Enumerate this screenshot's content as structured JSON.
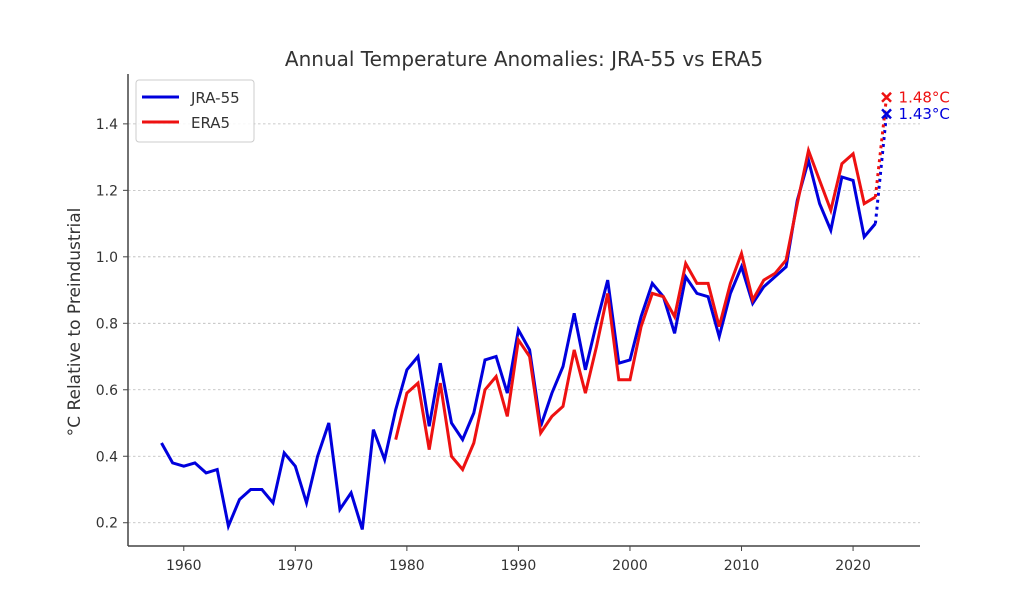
{
  "chart_data": {
    "type": "line",
    "title": "Annual Temperature Anomalies: JRA-55 vs ERA5",
    "xlabel": "",
    "ylabel": "°C Relative to Preindustrial",
    "xlim": [
      1955,
      2026
    ],
    "ylim": [
      0.13,
      1.55
    ],
    "x_ticks": [
      1960,
      1970,
      1980,
      1990,
      2000,
      2010,
      2020
    ],
    "x_tick_labels": [
      "1960",
      "1970",
      "1980",
      "1990",
      "2000",
      "2010",
      "2020"
    ],
    "y_ticks": [
      0.2,
      0.4,
      0.6,
      0.8,
      1.0,
      1.2,
      1.4
    ],
    "y_tick_labels": [
      "0.2",
      "0.4",
      "0.6",
      "0.8",
      "1.0",
      "1.2",
      "1.4"
    ],
    "grid": "horizontal-dotted",
    "legend_position": "top-left",
    "series": [
      {
        "name": "JRA-55",
        "color": "#0000dd",
        "x": [
          1958,
          1959,
          1960,
          1961,
          1962,
          1963,
          1964,
          1965,
          1966,
          1967,
          1968,
          1969,
          1970,
          1971,
          1972,
          1973,
          1974,
          1975,
          1976,
          1977,
          1978,
          1979,
          1980,
          1981,
          1982,
          1983,
          1984,
          1985,
          1986,
          1987,
          1988,
          1989,
          1990,
          1991,
          1992,
          1993,
          1994,
          1995,
          1996,
          1997,
          1998,
          1999,
          2000,
          2001,
          2002,
          2003,
          2004,
          2005,
          2006,
          2007,
          2008,
          2009,
          2010,
          2011,
          2012,
          2013,
          2014,
          2015,
          2016,
          2017,
          2018,
          2019,
          2020,
          2021,
          2022
        ],
        "values": [
          0.44,
          0.38,
          0.37,
          0.38,
          0.35,
          0.36,
          0.19,
          0.27,
          0.3,
          0.3,
          0.26,
          0.41,
          0.37,
          0.26,
          0.4,
          0.5,
          0.24,
          0.29,
          0.18,
          0.48,
          0.39,
          0.54,
          0.66,
          0.7,
          0.49,
          0.68,
          0.5,
          0.45,
          0.53,
          0.69,
          0.7,
          0.59,
          0.78,
          0.72,
          0.49,
          0.59,
          0.67,
          0.83,
          0.66,
          0.8,
          0.93,
          0.68,
          0.69,
          0.82,
          0.92,
          0.88,
          0.77,
          0.94,
          0.89,
          0.88,
          0.76,
          0.89,
          0.97,
          0.86,
          0.91,
          0.94,
          0.97,
          1.17,
          1.29,
          1.16,
          1.08,
          1.24,
          1.23,
          1.06,
          1.1
        ],
        "projection": {
          "x": [
            2022,
            2023
          ],
          "values": [
            1.1,
            1.43
          ],
          "style": "dotted"
        },
        "marker": {
          "x": 2023,
          "value": 1.43,
          "symbol": "x",
          "label": "1.43°C"
        }
      },
      {
        "name": "ERA5",
        "color": "#ee1111",
        "x": [
          1979,
          1980,
          1981,
          1982,
          1983,
          1984,
          1985,
          1986,
          1987,
          1988,
          1989,
          1990,
          1991,
          1992,
          1993,
          1994,
          1995,
          1996,
          1997,
          1998,
          1999,
          2000,
          2001,
          2002,
          2003,
          2004,
          2005,
          2006,
          2007,
          2008,
          2009,
          2010,
          2011,
          2012,
          2013,
          2014,
          2015,
          2016,
          2017,
          2018,
          2019,
          2020,
          2021,
          2022
        ],
        "values": [
          0.45,
          0.59,
          0.62,
          0.42,
          0.62,
          0.4,
          0.36,
          0.44,
          0.6,
          0.64,
          0.52,
          0.75,
          0.7,
          0.47,
          0.52,
          0.55,
          0.72,
          0.59,
          0.73,
          0.89,
          0.63,
          0.63,
          0.79,
          0.89,
          0.88,
          0.82,
          0.98,
          0.92,
          0.92,
          0.79,
          0.92,
          1.01,
          0.87,
          0.93,
          0.95,
          0.99,
          1.16,
          1.32,
          1.23,
          1.14,
          1.28,
          1.31,
          1.16,
          1.18
        ],
        "projection": {
          "x": [
            2022,
            2023
          ],
          "values": [
            1.18,
            1.48
          ],
          "style": "dotted"
        },
        "marker": {
          "x": 2023,
          "value": 1.48,
          "symbol": "x",
          "label": "1.48°C"
        }
      }
    ]
  }
}
